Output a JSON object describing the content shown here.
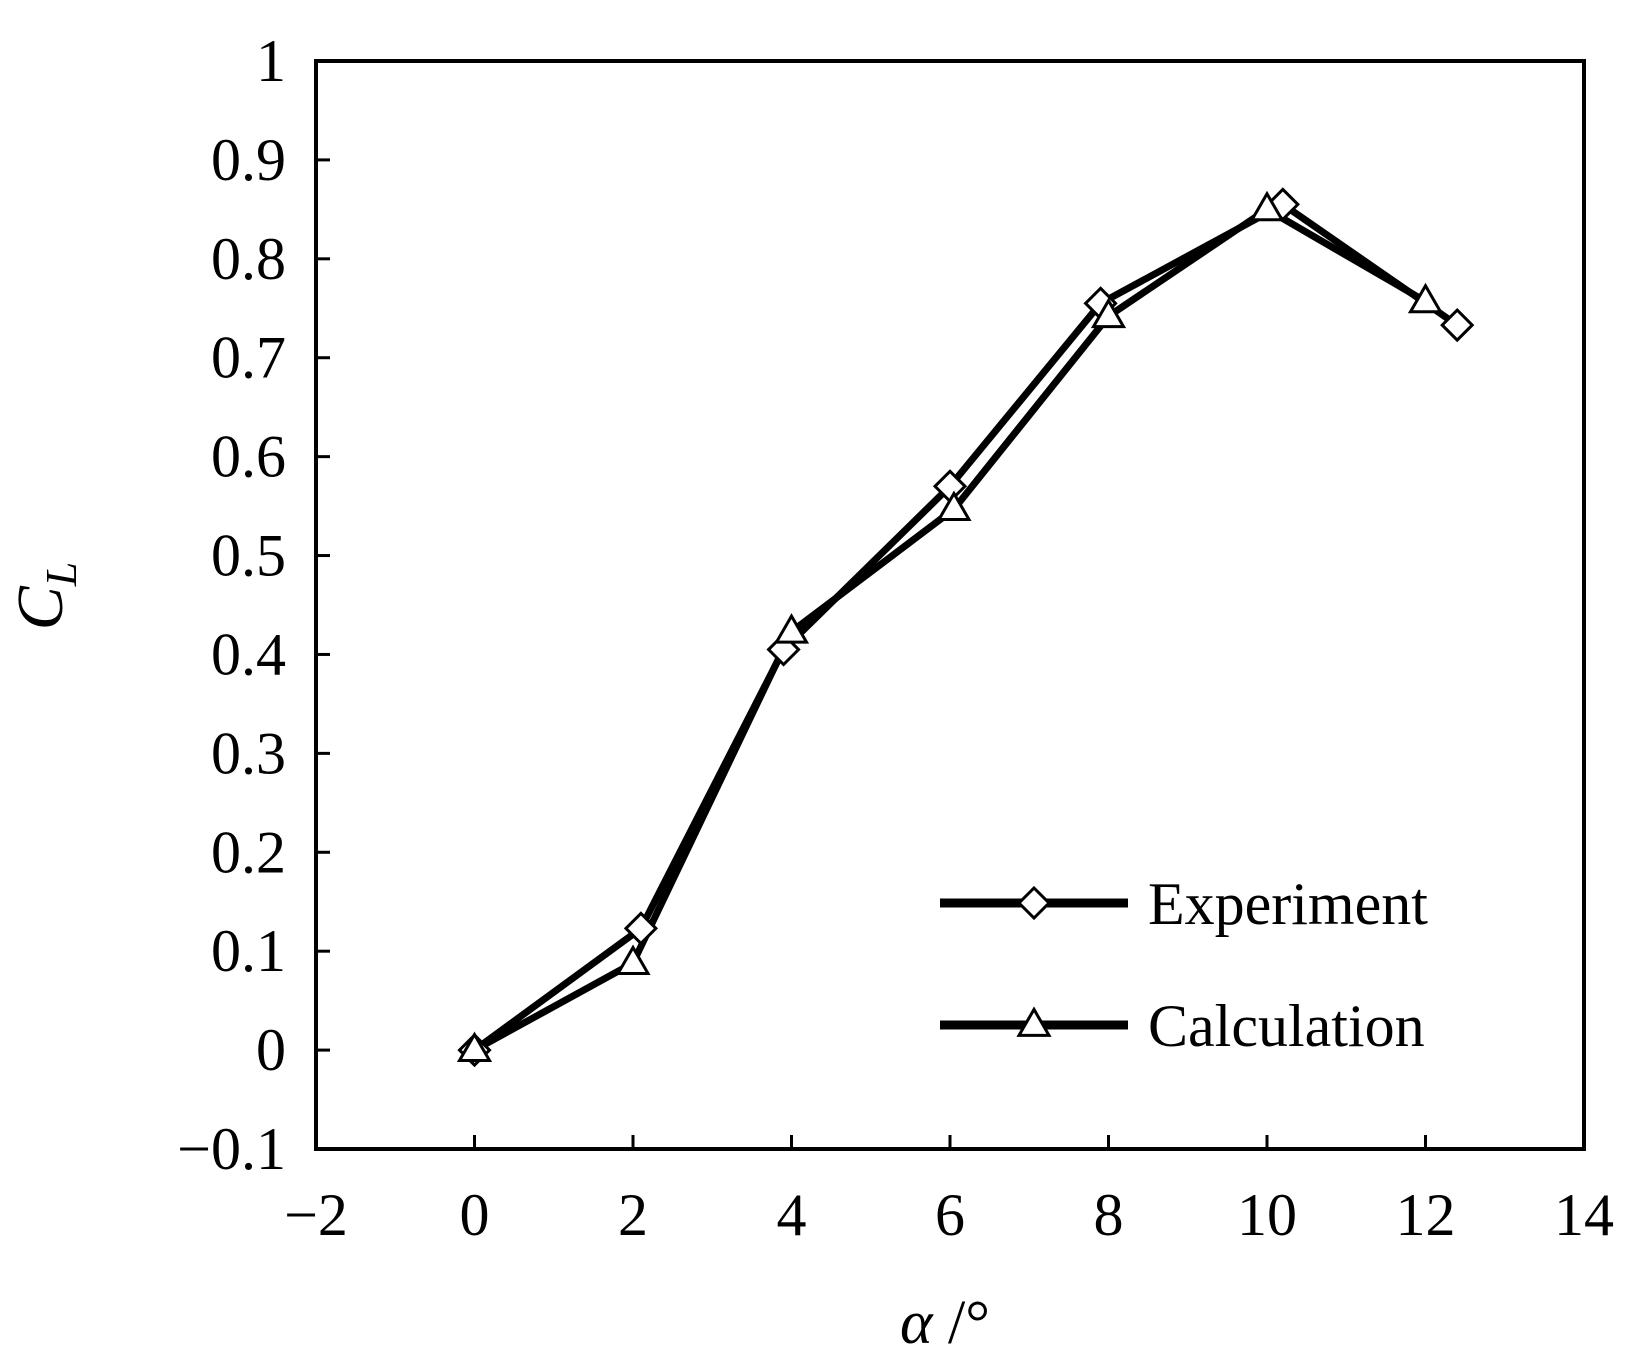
{
  "chart_data": {
    "type": "line",
    "title": "",
    "xlabel": "α /°",
    "ylabel": "C_L",
    "xlabel_parts": {
      "symbol": "α",
      "unit": " /°"
    },
    "ylabel_parts": {
      "main": "C",
      "sub": "L"
    },
    "xlim": [
      -2,
      14
    ],
    "ylim": [
      -0.1,
      1
    ],
    "x_ticks": [
      -2,
      0,
      2,
      4,
      6,
      8,
      10,
      12,
      14
    ],
    "x_tick_labels": [
      "−2",
      "0",
      "2",
      "4",
      "6",
      "8",
      "10",
      "12",
      "14"
    ],
    "y_ticks": [
      -0.1,
      0,
      0.1,
      0.2,
      0.3,
      0.4,
      0.5,
      0.6,
      0.7,
      0.8,
      0.9,
      1
    ],
    "y_tick_labels": [
      "−0.1",
      "0",
      "0.1",
      "0.2",
      "0.3",
      "0.4",
      "0.5",
      "0.6",
      "0.7",
      "0.8",
      "0.9",
      "1"
    ],
    "grid": false,
    "legend_position": "bottom-right",
    "series": [
      {
        "name": "Experiment",
        "marker": "diamond-open",
        "color": "#000000",
        "x": [
          0,
          2.1,
          3.9,
          6.0,
          7.9,
          10.2,
          12.4
        ],
        "y": [
          0.0,
          0.123,
          0.405,
          0.57,
          0.755,
          0.855,
          0.733
        ]
      },
      {
        "name": "Calculation",
        "marker": "triangle-open",
        "color": "#000000",
        "x": [
          0,
          2.0,
          4.0,
          6.05,
          8.0,
          10.0,
          12.0
        ],
        "y": [
          0.0,
          0.088,
          0.423,
          0.547,
          0.742,
          0.85,
          0.757
        ]
      }
    ]
  }
}
